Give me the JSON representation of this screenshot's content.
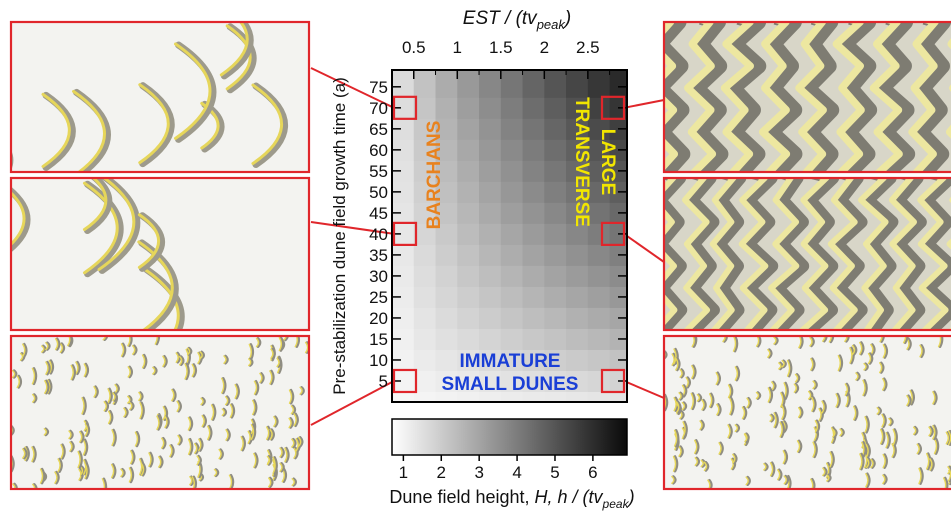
{
  "chart_data": {
    "type": "heatmap",
    "title": "",
    "xlabel": "EST / (tv",
    "xlabel_sub": "peak",
    "xlabel_close": ")",
    "ylabel": "Pre-stabilization dune field growth time (a)",
    "x_ticks": [
      "0.5",
      "1",
      "1.5",
      "2",
      "2.5"
    ],
    "x_tick_values": [
      0.5,
      1,
      1.5,
      2,
      2.5
    ],
    "x_range": [
      0.25,
      2.95
    ],
    "y_ticks": [
      "5",
      "10",
      "15",
      "20",
      "25",
      "30",
      "35",
      "40",
      "45",
      "50",
      "55",
      "60",
      "65",
      "70",
      "75"
    ],
    "y_range": [
      0,
      79
    ],
    "x_bins": [
      0.25,
      0.5,
      0.75,
      1.0,
      1.25,
      1.5,
      1.75,
      2.0,
      2.25,
      2.5,
      2.75,
      2.95
    ],
    "y_bins": [
      0,
      2.5,
      7.5,
      12.5,
      17.5,
      22.5,
      27.5,
      32.5,
      37.5,
      42.5,
      47.5,
      52.5,
      57.5,
      62.5,
      67.5,
      72.5,
      79
    ],
    "colorbar": {
      "label": "Dune field height, ",
      "label_var": "H, h",
      "label_rest": " / (tv",
      "label_sub": "peak",
      "label_close": ")",
      "ticks": [
        "1",
        "2",
        "3",
        "4",
        "5",
        "6"
      ],
      "tick_values": [
        1,
        2,
        3,
        4,
        5,
        6
      ],
      "range": [
        0.7,
        6.9
      ],
      "colormap": [
        "#ffffff",
        "#0a0a0a"
      ]
    },
    "annotations": [
      {
        "text": "BARCHANS",
        "color": "#e8821e"
      },
      {
        "text": "LARGE",
        "color": "#f2e600"
      },
      {
        "text": "TRANSVERSE",
        "color": "#f2e600"
      },
      {
        "text": "IMMATURE",
        "color": "#1a3fd6"
      },
      {
        "text": "SMALL DUNES",
        "color": "#1a3fd6"
      }
    ],
    "insets": [
      {
        "name": "barchans-t70",
        "x": 0.5,
        "y": 70,
        "type": "barchans-sparse"
      },
      {
        "name": "barchans-t40",
        "x": 0.5,
        "y": 40,
        "type": "barchans-dense"
      },
      {
        "name": "immature-t5-left",
        "x": 0.5,
        "y": 5,
        "type": "small-dunes"
      },
      {
        "name": "transverse-t70",
        "x": 2.75,
        "y": 70,
        "type": "transverse-large"
      },
      {
        "name": "transverse-t40",
        "x": 2.75,
        "y": 40,
        "type": "transverse-medium"
      },
      {
        "name": "immature-t5-right",
        "x": 2.75,
        "y": 5,
        "type": "small-dunes"
      }
    ],
    "grid": false,
    "colors": {
      "marker_box": "#e0262b",
      "frame": "#000000"
    }
  }
}
